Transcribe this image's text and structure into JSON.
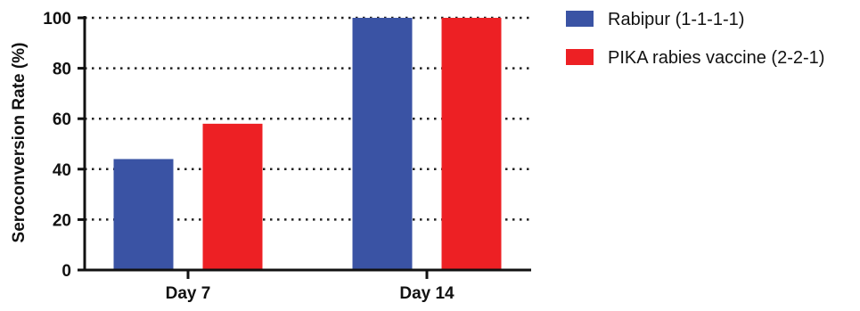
{
  "chart_data": {
    "type": "bar",
    "categories": [
      "Day 7",
      "Day 14"
    ],
    "series": [
      {
        "name": "Rabipur (1-1-1-1)",
        "values": [
          44,
          100
        ],
        "color": "#3a53a4"
      },
      {
        "name": "PIKA rabies vaccine (2-2-1)",
        "values": [
          58,
          100
        ],
        "color": "#ed2024"
      }
    ],
    "xlabel": "",
    "ylabel": "Seroconversion Rate (%)",
    "ylim": [
      0,
      100
    ],
    "yticks": [
      0,
      20,
      40,
      60,
      80,
      100
    ],
    "grid": "horizontal dotted",
    "legend_position": "right"
  }
}
